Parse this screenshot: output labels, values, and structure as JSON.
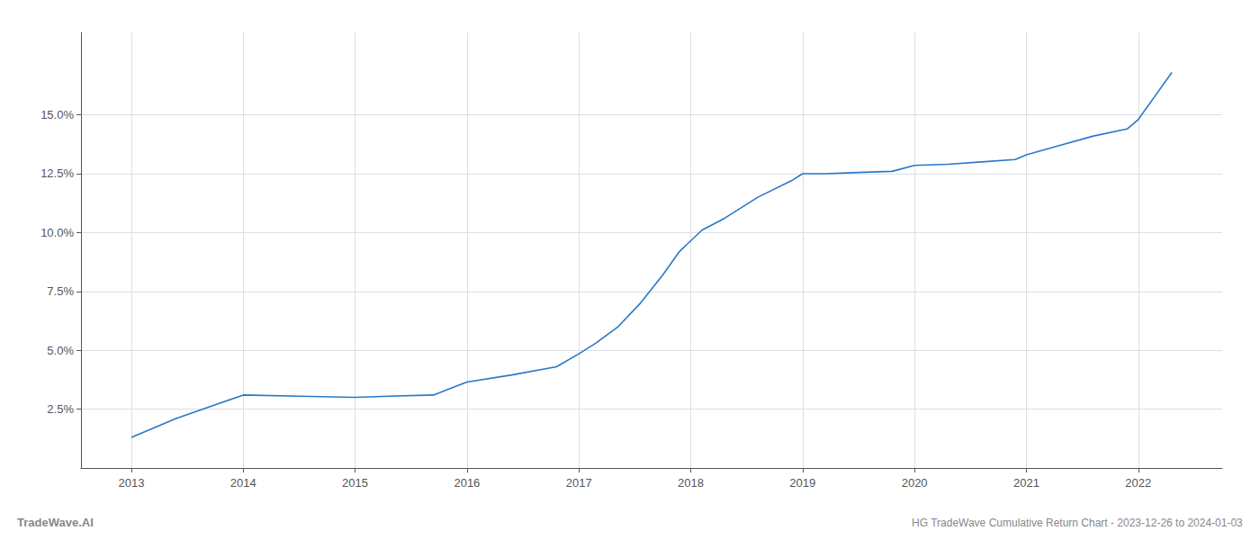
{
  "chart_data": {
    "type": "line",
    "title": "HG TradeWave Cumulative Return Chart - 2023-12-26 to 2024-01-03",
    "annotations": [
      "TradeWave.AI"
    ],
    "x": [
      2013.0,
      2013.4,
      2014.0,
      2014.5,
      2015.0,
      2015.3,
      2015.7,
      2016.0,
      2016.4,
      2016.8,
      2017.0,
      2017.15,
      2017.35,
      2017.55,
      2017.75,
      2017.9,
      2018.1,
      2018.3,
      2018.6,
      2018.9,
      2019.0,
      2019.2,
      2019.5,
      2019.8,
      2020.0,
      2020.3,
      2020.6,
      2020.9,
      2021.0,
      2021.3,
      2021.6,
      2021.9,
      2022.0,
      2022.15,
      2022.3
    ],
    "values": [
      1.3,
      2.1,
      3.1,
      3.05,
      3.0,
      3.05,
      3.1,
      3.65,
      3.95,
      4.3,
      4.85,
      5.3,
      6.0,
      7.0,
      8.2,
      9.2,
      10.1,
      10.6,
      11.5,
      12.2,
      12.5,
      12.5,
      12.55,
      12.6,
      12.85,
      12.9,
      13.0,
      13.1,
      13.3,
      13.7,
      14.1,
      14.4,
      14.8,
      15.8,
      16.8
    ],
    "color": "#2878c8",
    "xlim": [
      2012.55,
      2022.75
    ],
    "ylim": [
      0.0,
      18.5
    ],
    "xticks": [
      2013,
      2014,
      2015,
      2016,
      2017,
      2018,
      2019,
      2020,
      2021,
      2022
    ],
    "yticks": [
      {
        "value": 2.5,
        "label": "2.5%"
      },
      {
        "value": 5.0,
        "label": "5.0%"
      },
      {
        "value": 7.5,
        "label": "7.5%"
      },
      {
        "value": 10.0,
        "label": "10.0%"
      },
      {
        "value": 12.5,
        "label": "12.5%"
      },
      {
        "value": 15.0,
        "label": "15.0%"
      }
    ],
    "grid": true
  }
}
